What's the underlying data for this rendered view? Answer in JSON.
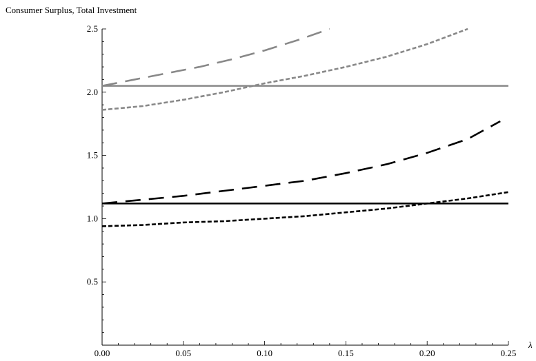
{
  "chart_data": {
    "type": "line",
    "title": "",
    "ylabel": "Consumer Surplus, Total Investment",
    "xlabel": "λ",
    "xlim": [
      0,
      0.25
    ],
    "ylim": [
      0,
      2.5
    ],
    "x_ticks": [
      "0.00",
      "0.05",
      "0.10",
      "0.15",
      "0.20",
      "0.25"
    ],
    "y_ticks": [
      "0.5",
      "1.0",
      "1.5",
      "2.0",
      "2.5"
    ],
    "grid": false,
    "legend": "none",
    "series": [
      {
        "color": "#888888",
        "style": "solid",
        "x": [
          0.0,
          0.25
        ],
        "y": [
          2.05,
          2.05
        ]
      },
      {
        "color": "#888888",
        "style": "long-dash",
        "x": [
          0.0,
          0.02,
          0.04,
          0.06,
          0.08,
          0.1,
          0.12,
          0.14
        ],
        "y": [
          2.05,
          2.1,
          2.15,
          2.2,
          2.26,
          2.33,
          2.41,
          2.5
        ]
      },
      {
        "color": "#888888",
        "style": "short-dash",
        "x": [
          0.0,
          0.025,
          0.05,
          0.075,
          0.1,
          0.125,
          0.15,
          0.175,
          0.2,
          0.225
        ],
        "y": [
          1.86,
          1.89,
          1.94,
          2.0,
          2.07,
          2.13,
          2.2,
          2.28,
          2.38,
          2.5
        ]
      },
      {
        "color": "#000000",
        "style": "solid",
        "x": [
          0.0,
          0.25
        ],
        "y": [
          1.12,
          1.12
        ]
      },
      {
        "color": "#000000",
        "style": "long-dash",
        "x": [
          0.0,
          0.025,
          0.05,
          0.075,
          0.1,
          0.125,
          0.15,
          0.175,
          0.2,
          0.225,
          0.245
        ],
        "y": [
          1.12,
          1.15,
          1.18,
          1.22,
          1.26,
          1.3,
          1.36,
          1.43,
          1.52,
          1.63,
          1.77
        ]
      },
      {
        "color": "#000000",
        "style": "short-dash",
        "x": [
          0.0,
          0.025,
          0.05,
          0.075,
          0.1,
          0.125,
          0.15,
          0.175,
          0.2,
          0.225,
          0.25
        ],
        "y": [
          0.94,
          0.95,
          0.97,
          0.98,
          1.0,
          1.02,
          1.05,
          1.08,
          1.12,
          1.16,
          1.21
        ]
      }
    ]
  }
}
